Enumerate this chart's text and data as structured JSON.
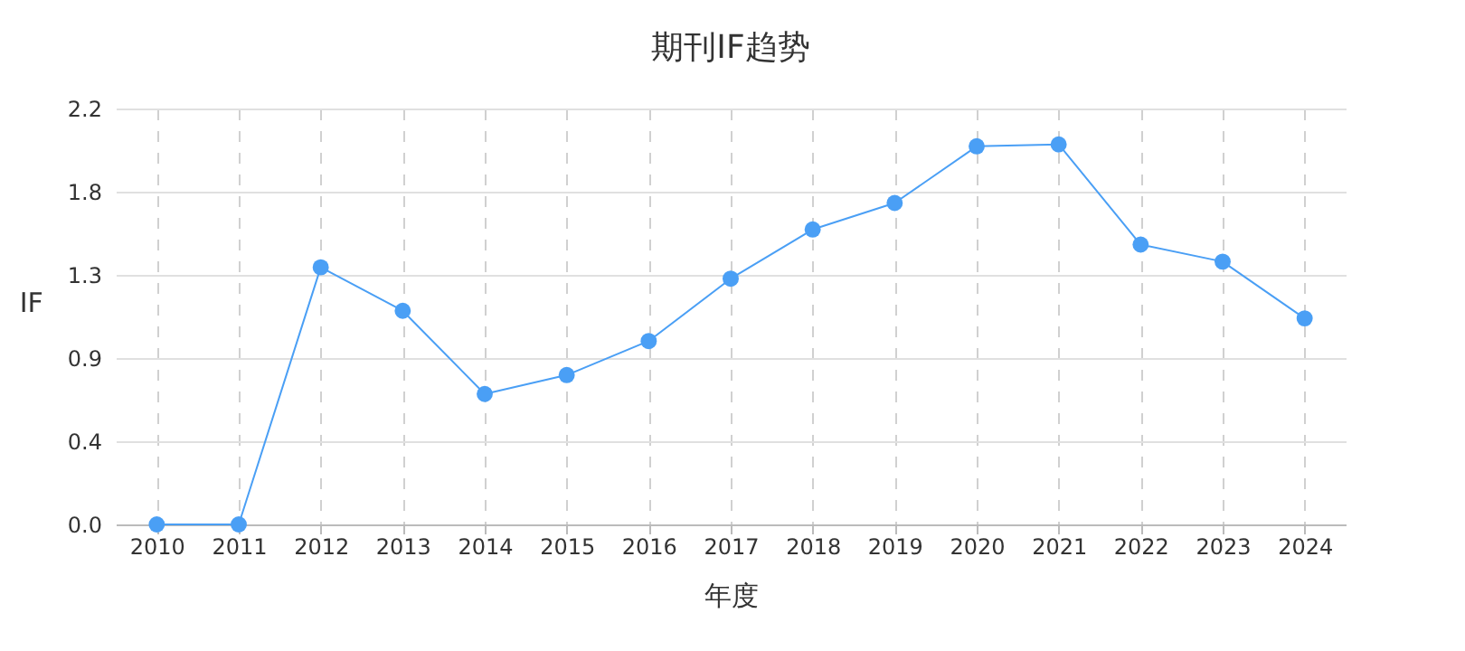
{
  "chart_data": {
    "type": "line",
    "title": "期刊IF趋势",
    "xlabel": "年度",
    "ylabel": "IF",
    "categories": [
      "2010",
      "2011",
      "2012",
      "2013",
      "2014",
      "2015",
      "2016",
      "2017",
      "2018",
      "2019",
      "2020",
      "2021",
      "2022",
      "2023",
      "2024"
    ],
    "series": [
      {
        "color": "#4a9ff5",
        "values": [
          0,
          0,
          1.36,
          1.13,
          0.69,
          0.79,
          0.97,
          1.3,
          1.56,
          1.7,
          2.0,
          2.01,
          1.48,
          1.39,
          1.09
        ]
      }
    ],
    "ylim": [
      0,
      2.2
    ],
    "yticks": [
      {
        "value": 0,
        "label": "0.0"
      },
      {
        "value": 0.44,
        "label": "0.4"
      },
      {
        "value": 0.88,
        "label": "0.9"
      },
      {
        "value": 1.32,
        "label": "1.3"
      },
      {
        "value": 1.76,
        "label": "1.8"
      },
      {
        "value": 2.2,
        "label": "2.2"
      }
    ],
    "grid": true,
    "marker": "circle",
    "line_style": "solid"
  }
}
